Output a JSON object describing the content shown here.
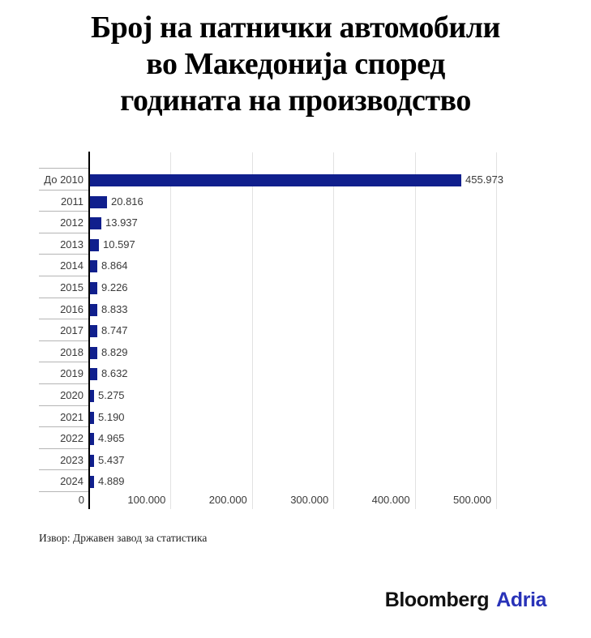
{
  "title": {
    "full": "Број на патнички автомобили во Македонија според годината на производство",
    "lines": [
      "Број на патнички автомобили",
      "во Македонија според",
      "годината на производство"
    ]
  },
  "chart_data": {
    "type": "bar",
    "orientation": "horizontal",
    "title": "Број на патнички автомобили во Македонија според годината на производство",
    "categories": [
      "До 2010",
      "2011",
      "2012",
      "2013",
      "2014",
      "2015",
      "2016",
      "2017",
      "2018",
      "2019",
      "2020",
      "2021",
      "2022",
      "2023",
      "2024"
    ],
    "values": [
      455973,
      20816,
      13937,
      10597,
      8864,
      9226,
      8833,
      8747,
      8829,
      8632,
      5275,
      5190,
      4965,
      5437,
      4889
    ],
    "value_labels": [
      "455.973",
      "20.816",
      "13.937",
      "10.597",
      "8.864",
      "9.226",
      "8.833",
      "8.747",
      "8.829",
      "8.632",
      "5.275",
      "5.190",
      "4.965",
      "5.437",
      "4.889"
    ],
    "x_axis": {
      "ticks": [
        0,
        100000,
        200000,
        300000,
        400000,
        500000
      ],
      "tick_labels": [
        "0",
        "100.000",
        "200.000",
        "300.000",
        "400.000",
        "500.000"
      ]
    },
    "xlim": [
      0,
      572000
    ],
    "grid": true,
    "legend": false,
    "bar_color": "#101f8d"
  },
  "source": {
    "text": "Извор: Државен завод за статистика"
  },
  "logo": {
    "part1": "Bloomberg",
    "part2": "Adria"
  },
  "colors": {
    "background": "#ffffff",
    "bar": "#101f8d",
    "gridline": "#e2e2e2",
    "tickline": "#b5b5b5",
    "axis": "#000000",
    "chart_label": "#3a3a3a",
    "title": "#000000",
    "source": "#1f1f1f",
    "logo_black": "#111111",
    "logo_blue": "#2832b8"
  }
}
